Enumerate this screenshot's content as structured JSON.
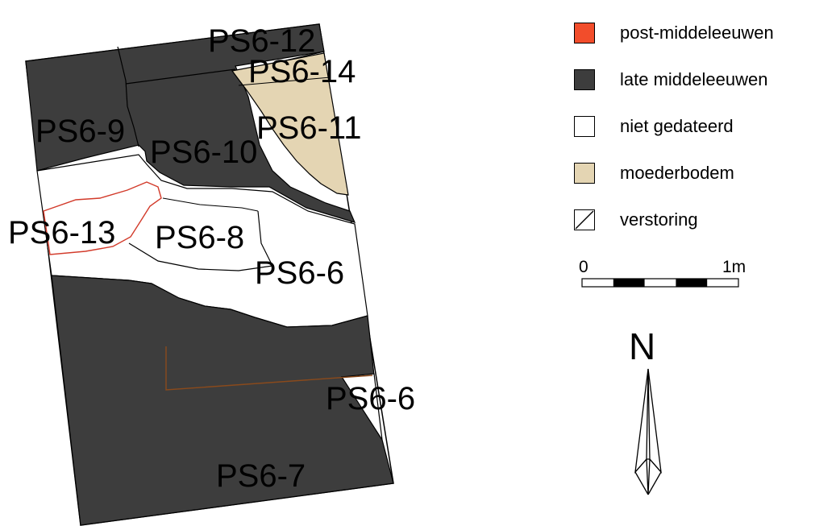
{
  "legend": [
    {
      "label": "post-middeleeuwen",
      "color": "#f24d2b",
      "pattern": "solid"
    },
    {
      "label": "late middeleeuwen",
      "color": "#3d3d3d",
      "pattern": "solid"
    },
    {
      "label": "niet gedateerd",
      "color": "#ffffff",
      "pattern": "solid"
    },
    {
      "label": "moederbodem",
      "color": "#e4d5b3",
      "pattern": "solid"
    },
    {
      "label": "verstoring",
      "color": "#ffffff",
      "pattern": "diagonal"
    }
  ],
  "scale": {
    "start_label": "0",
    "end_label": "1m"
  },
  "north": {
    "label": "N"
  },
  "features": {
    "ps6_12": "PS6-12",
    "ps6_14": "PS6-14",
    "ps6_9": "PS6-9",
    "ps6_10": "PS6-10",
    "ps6_11": "PS6-11",
    "ps6_13": "PS6-13",
    "ps6_8": "PS6-8",
    "ps6_6_upper": "PS6-6",
    "ps6_6_lower": "PS6-6",
    "ps6_7": "PS6-7"
  },
  "colors": {
    "late_middeleeuwen": "#3d3d3d",
    "moederbodem": "#e4d5b3",
    "post_middeleeuwen_line": "#d23a2a",
    "cut_line": "#8a4a1c"
  }
}
